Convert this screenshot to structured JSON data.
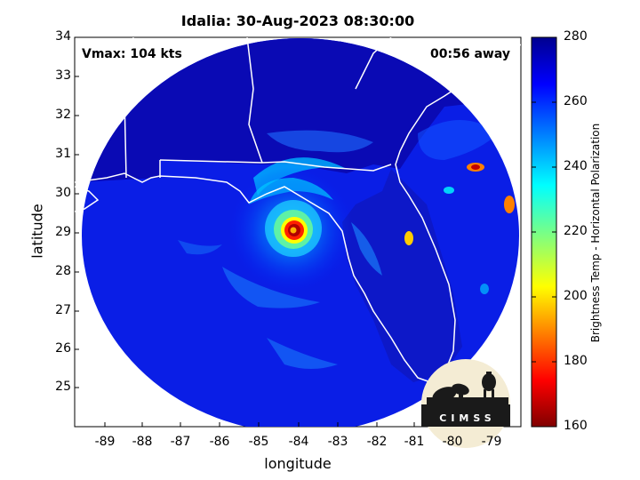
{
  "title": "Idalia: 30-Aug-2023 08:30:00",
  "vmax_label": "Vmax: 104 kts",
  "time_label": "00:56 away",
  "logo_text": "CIMSS",
  "chart_data": {
    "type": "heatmap",
    "title": "Idalia: 30-Aug-2023 08:30:00",
    "xlabel": "longitude",
    "ylabel": "latitude",
    "xlim": [
      -89.8,
      -78.4
    ],
    "ylim": [
      24,
      34
    ],
    "xticks": [
      "-89",
      "-88",
      "-87",
      "-86",
      "-85",
      "-84",
      "-83",
      "-82",
      "-81",
      "-80",
      "-79"
    ],
    "yticks": [
      "25",
      "26",
      "27",
      "28",
      "29",
      "30",
      "31",
      "32",
      "33",
      "34"
    ],
    "colorbar": {
      "label": "Brightness Temp - Horizontal Polarization",
      "range": [
        160,
        280
      ],
      "ticks": [
        "160",
        "180",
        "200",
        "220",
        "240",
        "260",
        "280"
      ],
      "colormap": "jet"
    },
    "storm_center": {
      "lon": -84.1,
      "lat": 29.1
    },
    "swath_center": {
      "lon": -84.15,
      "lat": 29.4
    },
    "grid": false
  },
  "colors": {
    "low": "#800000",
    "mid": "#ffff00",
    "high": "#00008f",
    "coastline": "#ffffff"
  },
  "icons": [
    "cimss-logo-icon"
  ]
}
